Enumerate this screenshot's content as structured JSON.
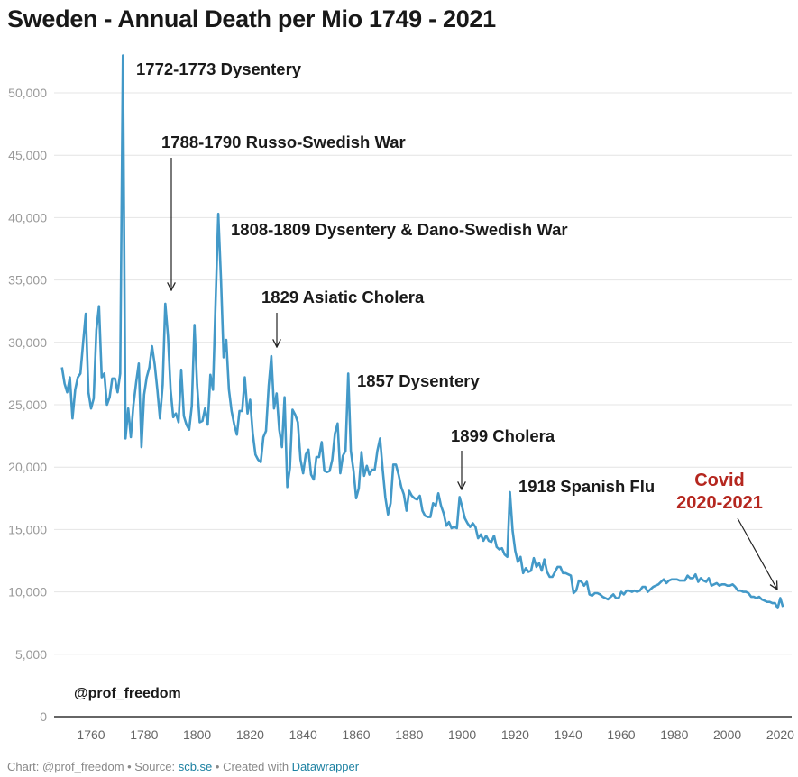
{
  "title": "Sweden - Annual Death per Mio 1749 - 2021",
  "footer": {
    "prefix": "Chart: @prof_freedom • Source: ",
    "source_link": "scb.se",
    "middle": " • Created with ",
    "tool_link": "Datawrapper"
  },
  "watermark": "@prof_freedom",
  "colors": {
    "line": "#4399c8",
    "covid": "#b5271f",
    "text": "#1a1a1a",
    "grid": "#e4e4e4"
  },
  "chart_data": {
    "type": "line",
    "title": "Sweden - Annual Death per Mio 1749 - 2021",
    "xlabel": "",
    "ylabel": "",
    "x_range": [
      1749,
      2021
    ],
    "xlim": [
      1749,
      2021
    ],
    "ylim": [
      0,
      53000
    ],
    "grid": true,
    "x_ticks": [
      "1760",
      "1780",
      "1800",
      "1820",
      "1840",
      "1860",
      "1880",
      "1900",
      "1920",
      "1940",
      "1960",
      "1980",
      "2000",
      "2020"
    ],
    "y_ticks": [
      "0",
      "5,000",
      "10,000",
      "15,000",
      "20,000",
      "25,000",
      "30,000",
      "35,000",
      "40,000",
      "45,000",
      "50,000"
    ],
    "values": [
      28000,
      26700,
      26000,
      27200,
      23900,
      26200,
      27200,
      27500,
      30000,
      32300,
      26000,
      24700,
      25500,
      31000,
      32900,
      27200,
      27500,
      25000,
      25600,
      27100,
      27100,
      26000,
      27500,
      53000,
      22300,
      24700,
      22400,
      25000,
      26800,
      28300,
      21600,
      25800,
      27200,
      28000,
      29700,
      28200,
      26200,
      23900,
      26600,
      33100,
      30500,
      26200,
      24000,
      24300,
      23600,
      27800,
      24100,
      23400,
      23000,
      24900,
      31400,
      26600,
      23600,
      23700,
      24700,
      23400,
      27400,
      26200,
      33500,
      40300,
      35000,
      28800,
      30200,
      26200,
      24500,
      23400,
      22600,
      24500,
      24500,
      27200,
      24300,
      25400,
      22700,
      21000,
      20600,
      20400,
      22400,
      22900,
      26500,
      28900,
      24700,
      25900,
      23000,
      21600,
      25600,
      18400,
      19900,
      24600,
      24200,
      23600,
      20600,
      19500,
      21000,
      21400,
      19400,
      19000,
      20800,
      20800,
      22000,
      19700,
      19600,
      19700,
      20600,
      22700,
      23500,
      19500,
      20900,
      21300,
      27500,
      21300,
      19700,
      17500,
      18300,
      21200,
      19300,
      20100,
      19400,
      19800,
      19800,
      21300,
      22300,
      19800,
      17600,
      16200,
      17100,
      20200,
      20200,
      19400,
      18400,
      17800,
      16500,
      18100,
      17700,
      17500,
      17400,
      17700,
      16500,
      16100,
      16000,
      16000,
      17100,
      16900,
      17900,
      16900,
      16300,
      15300,
      15600,
      15100,
      15200,
      15100,
      17600,
      16800,
      15900,
      15500,
      15200,
      15500,
      15200,
      14300,
      14600,
      14100,
      14500,
      14100,
      14000,
      14500,
      13600,
      13400,
      13500,
      13000,
      12800,
      18000,
      14900,
      13300,
      12400,
      12800,
      11500,
      11900,
      11600,
      11700,
      12700,
      12000,
      12300,
      11700,
      12600,
      11600,
      11200,
      11200,
      11600,
      12000,
      12000,
      11500,
      11500,
      11400,
      11300,
      9900,
      10100,
      10900,
      10800,
      10500,
      10800,
      9800,
      9700,
      9900,
      9900,
      9800,
      9600,
      9500,
      9400,
      9600,
      9800,
      9500,
      9500,
      10000,
      9800,
      10100,
      10100,
      10000,
      10100,
      10000,
      10100,
      10400,
      10400,
      10000,
      10200,
      10400,
      10500,
      10600,
      10800,
      11000,
      10700,
      10900,
      11000,
      11000,
      11000,
      10900,
      10900,
      10900,
      11300,
      11100,
      11100,
      11400,
      10800,
      11100,
      10900,
      10800,
      11100,
      10500,
      10600,
      10700,
      10500,
      10600,
      10600,
      10500,
      10500,
      10600,
      10400,
      10100,
      10100,
      10000,
      10000,
      9900,
      9600,
      9600,
      9500,
      9600,
      9400,
      9300,
      9200,
      9200,
      9100,
      9100,
      8700,
      9500,
      8800
    ],
    "annotations": [
      {
        "text": "1772-1773 Dysentery",
        "arrow": false
      },
      {
        "text": "1788-1790 Russo-Swedish War",
        "arrow": true
      },
      {
        "text": "1808-1809 Dysentery & Dano-Swedish War",
        "arrow": false
      },
      {
        "text": "1829 Asiatic Cholera",
        "arrow": true
      },
      {
        "text": "1857 Dysentery",
        "arrow": false
      },
      {
        "text": "1899 Cholera",
        "arrow": true
      },
      {
        "text": "1918 Spanish Flu",
        "arrow": false
      },
      {
        "text": "Covid",
        "text2": "2020-2021",
        "arrow": true
      }
    ]
  }
}
